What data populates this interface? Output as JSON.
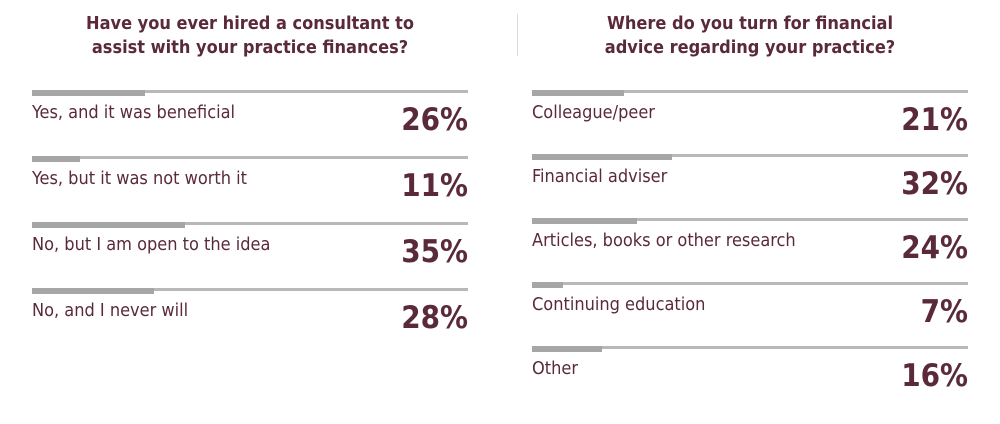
{
  "chart_data": [
    {
      "type": "bar",
      "title": "Have you ever hired a consultant to assist with your practice finances?",
      "title_lines": [
        "Have you ever hired a consultant to",
        "assist with your practice finances?"
      ],
      "unit": "%",
      "categories": [
        "Yes, and it was beneficial",
        "Yes, but it was not worth it",
        "No, but I am open to the idea",
        "No, and I never will"
      ],
      "values": [
        26,
        11,
        35,
        28
      ],
      "value_labels": [
        "26%",
        "11%",
        "35%",
        "28%"
      ],
      "ylim": [
        0,
        100
      ]
    },
    {
      "type": "bar",
      "title": "Where do you turn for financial advice regarding your practice?",
      "title_lines": [
        "Where do you turn for financial",
        "advice regarding your practice?"
      ],
      "unit": "%",
      "categories": [
        "Colleague/peer",
        "Financial adviser",
        "Articles, books or other research",
        "Continuing education",
        "Other"
      ],
      "values": [
        21,
        32,
        24,
        7,
        16
      ],
      "value_labels": [
        "21%",
        "32%",
        "24%",
        "7%",
        "16%"
      ],
      "ylim": [
        0,
        100
      ]
    }
  ],
  "colors": {
    "text": "#5a2a3a",
    "track": "#b8b8b8",
    "fill": "#a6a6a6"
  }
}
